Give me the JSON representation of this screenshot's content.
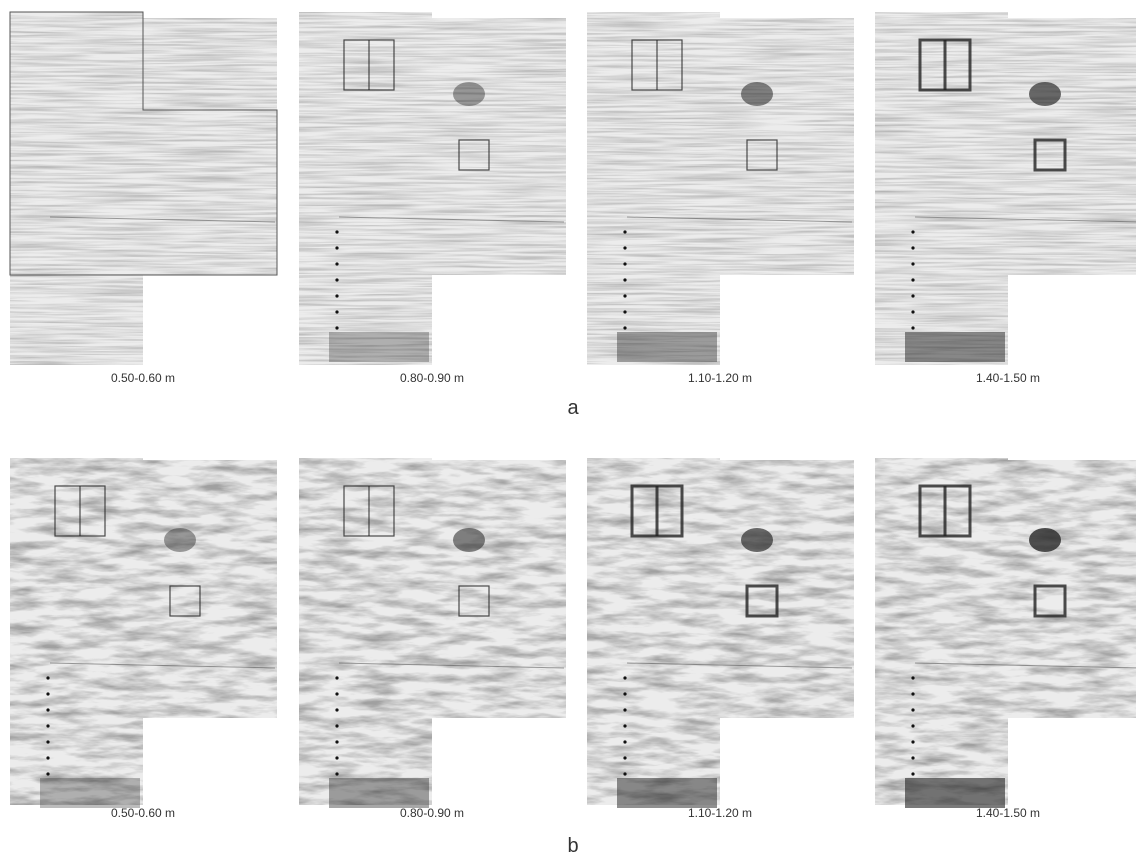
{
  "figure": {
    "rows": [
      {
        "label": "a",
        "panels": [
          {
            "caption": "0.50-0.60 m"
          },
          {
            "caption": "0.80-0.90 m"
          },
          {
            "caption": "1.10-1.20 m"
          },
          {
            "caption": "1.40-1.50 m"
          }
        ]
      },
      {
        "label": "b",
        "panels": [
          {
            "caption": "0.50-0.60 m"
          },
          {
            "caption": "0.80-0.90 m"
          },
          {
            "caption": "1.10-1.20 m"
          },
          {
            "caption": "1.40-1.50 m"
          }
        ]
      }
    ]
  }
}
